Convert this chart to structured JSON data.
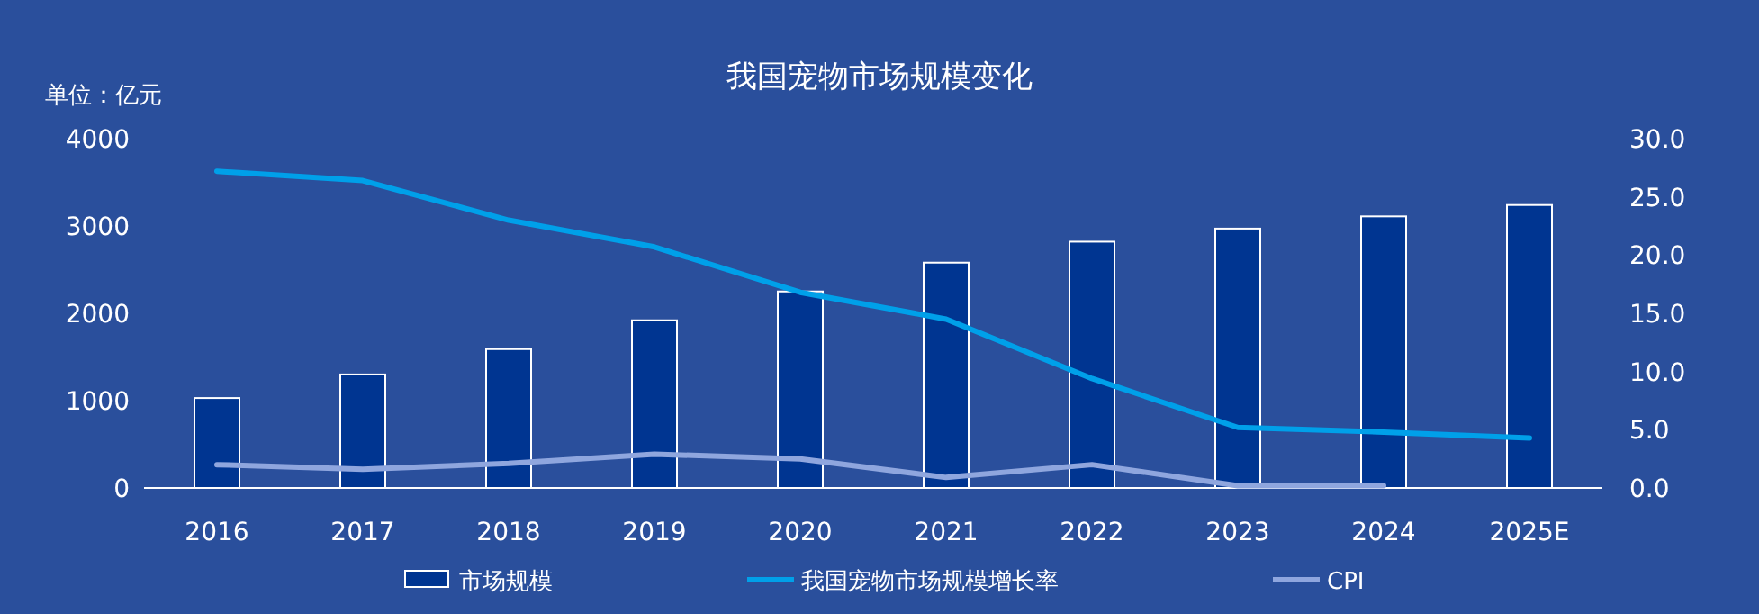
{
  "chart_data": {
    "type": "bar",
    "title": "我国宠物市场规模变化",
    "ylabel": "单位：亿元",
    "categories": [
      "2016",
      "2017",
      "2018",
      "2019",
      "2020",
      "2021",
      "2022",
      "2023",
      "2024",
      "2025E"
    ],
    "series": [
      {
        "name": "市场规模",
        "color": "#003591",
        "values": [
          1030,
          1300,
          1590,
          1920,
          2250,
          2580,
          2820,
          2970,
          3110,
          3240
        ]
      },
      {
        "name": "我国宠物市场规模增长率",
        "type": "line",
        "axis": "y2",
        "color": "#00a0e9",
        "values": [
          27.2,
          26.4,
          23.0,
          20.7,
          16.8,
          14.5,
          9.4,
          5.2,
          4.8,
          4.3
        ]
      },
      {
        "name": "CPI",
        "type": "line",
        "axis": "y2",
        "color": "#8fa6de",
        "values": [
          2.0,
          1.6,
          2.1,
          2.9,
          2.5,
          0.9,
          2.0,
          0.2,
          0.2,
          null
        ]
      }
    ],
    "ylim": [
      0,
      4000
    ],
    "yticks": [
      0,
      1000,
      2000,
      3000,
      4000
    ],
    "y2lim": [
      0,
      30
    ],
    "y2ticks": [
      {
        "value": 0,
        "label": "0.0"
      },
      {
        "value": 5,
        "label": "5.0"
      },
      {
        "value": 10,
        "label": "10.0"
      },
      {
        "value": 15,
        "label": "15.0"
      },
      {
        "value": 20,
        "label": "20.0"
      },
      {
        "value": 25,
        "label": "25.0"
      },
      {
        "value": 30,
        "label": "30.0"
      }
    ],
    "legend": "bottom",
    "grid": false,
    "line_style": "solid",
    "marker": "none"
  }
}
